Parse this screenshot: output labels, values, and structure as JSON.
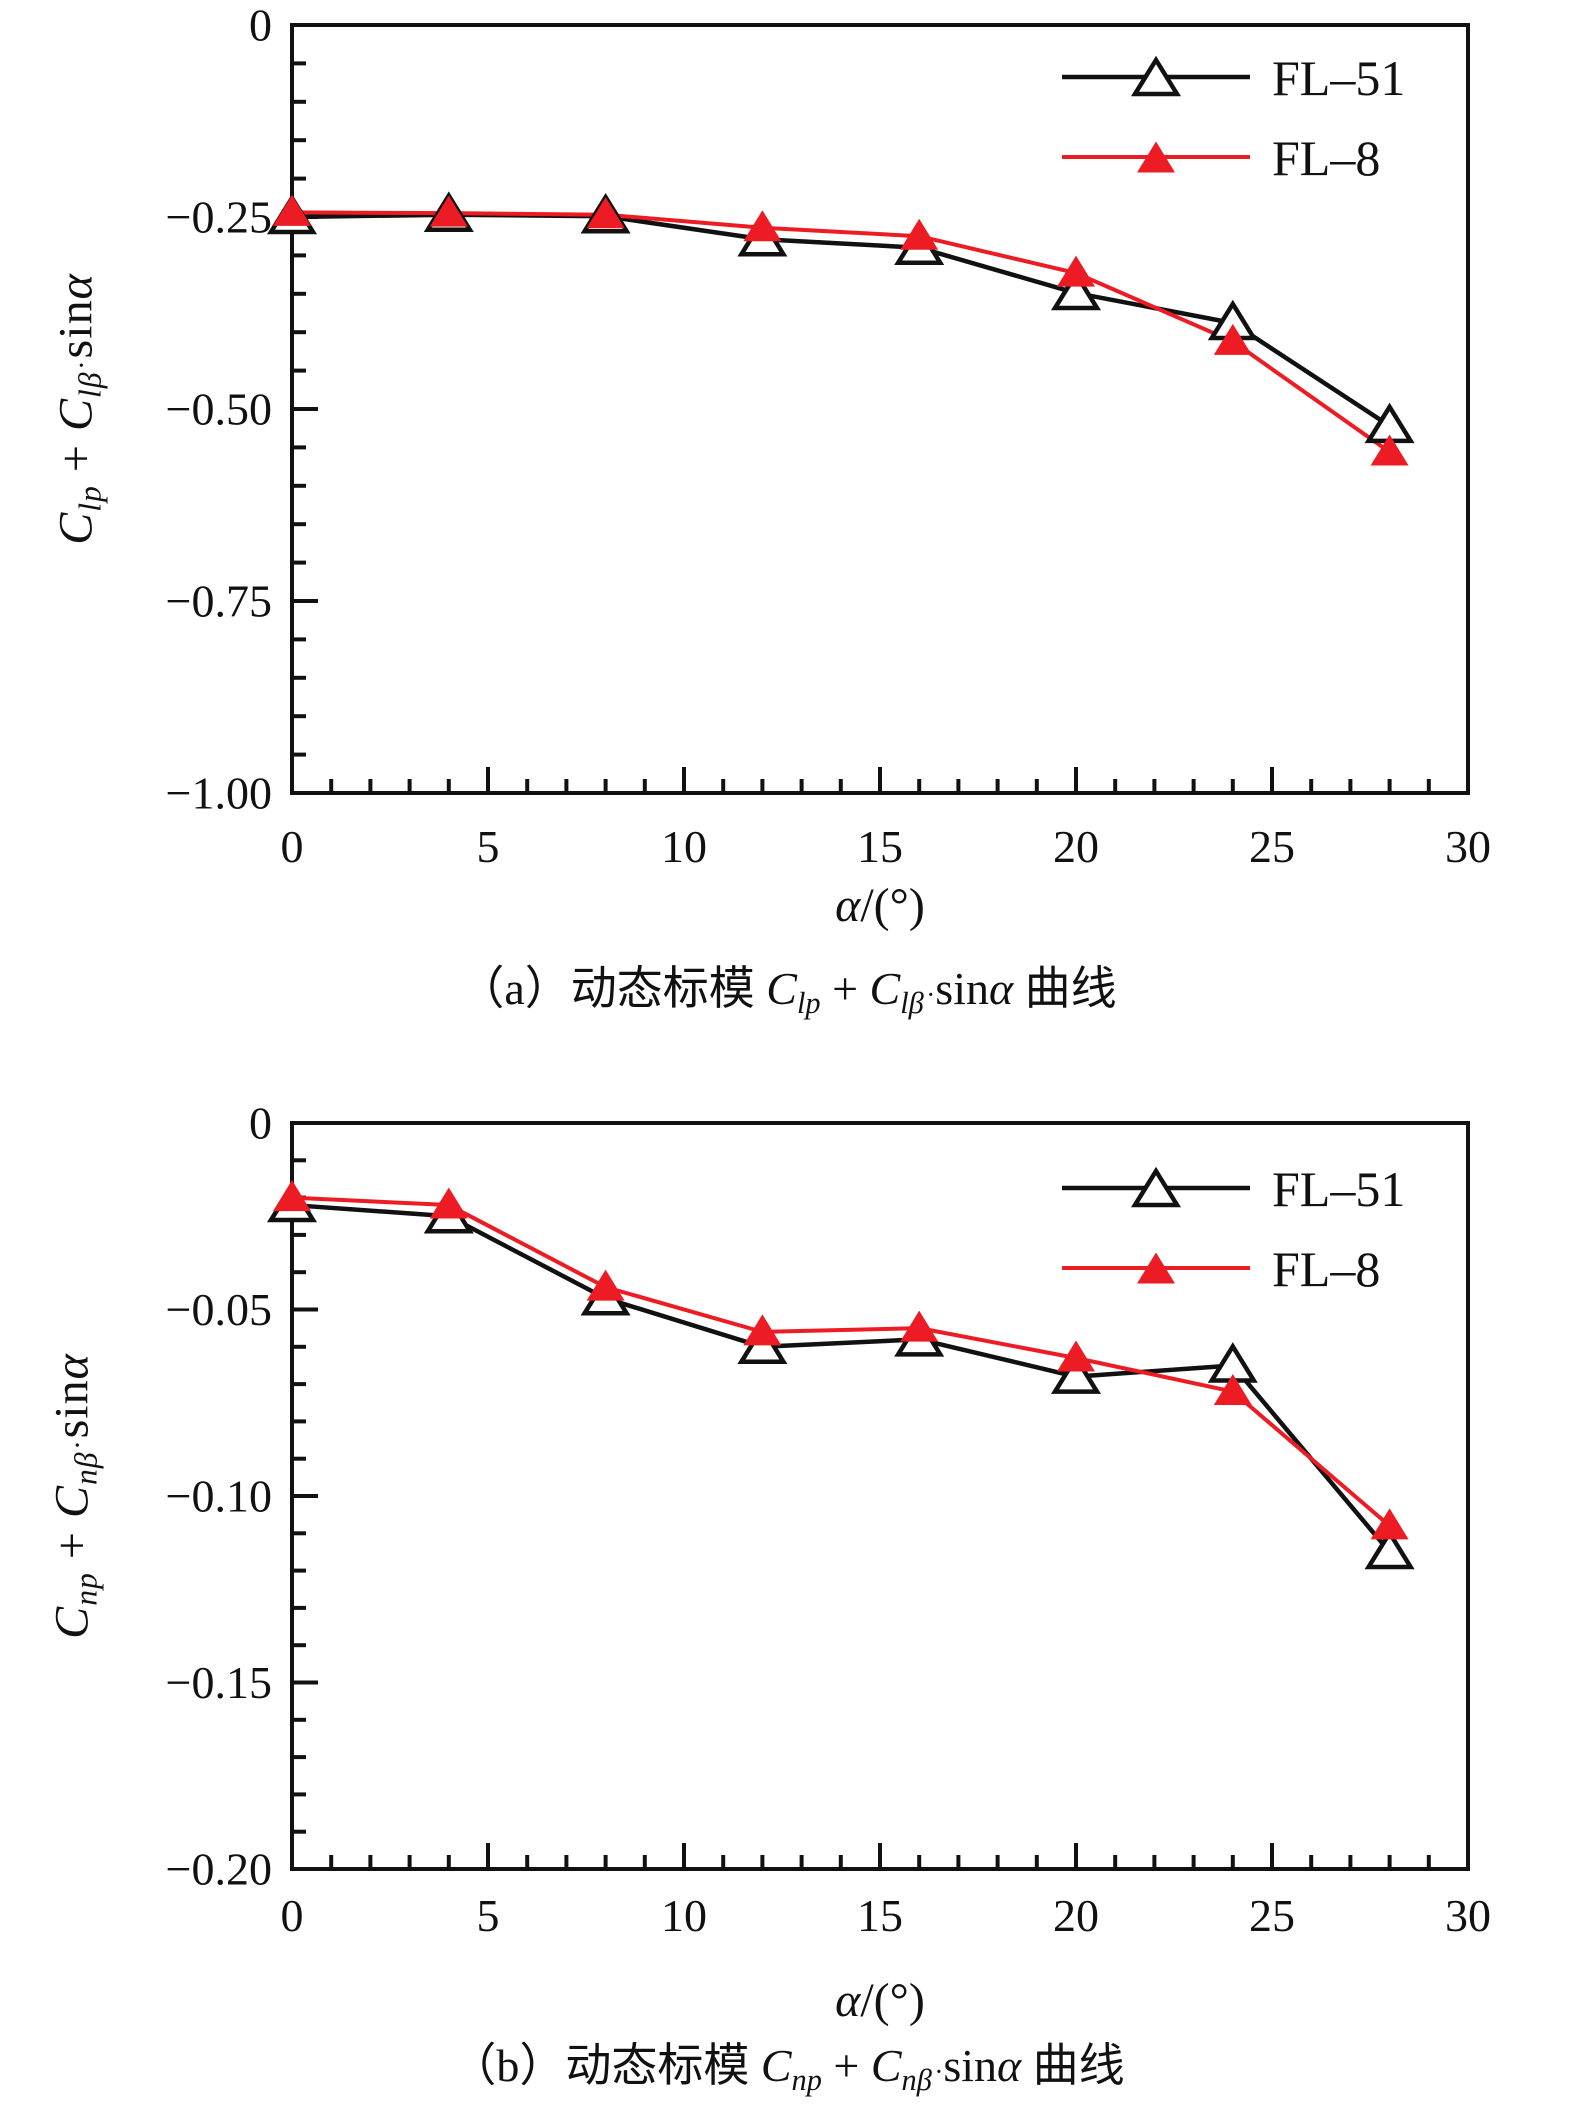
{
  "page": {
    "background": "#ffffff"
  },
  "colors": {
    "black": "#111111",
    "red": "#ed1c24",
    "marker_fill_open": "#ffffff"
  },
  "chart_data": [
    {
      "id": "a",
      "type": "line",
      "x": [
        0,
        4,
        8,
        12,
        16,
        20,
        24,
        28
      ],
      "series": [
        {
          "name": "FL–51",
          "color": "#111111",
          "marker": "open-triangle",
          "values": [
            -0.25,
            -0.247,
            -0.249,
            -0.279,
            -0.29,
            -0.349,
            -0.388,
            -0.522
          ]
        },
        {
          "name": "FL–8",
          "color": "#ed1c24",
          "marker": "filled-triangle",
          "values": [
            -0.244,
            -0.245,
            -0.247,
            -0.264,
            -0.275,
            -0.323,
            -0.412,
            -0.556
          ]
        }
      ],
      "xlim": [
        0,
        30
      ],
      "ylim": [
        -1.0,
        0
      ],
      "x_major_ticks": [
        0,
        5,
        10,
        15,
        20,
        25,
        30
      ],
      "x_tick_labels": [
        "0",
        "5",
        "10",
        "15",
        "20",
        "25",
        "30"
      ],
      "x_minor_step": 1,
      "y_major_ticks": [
        0,
        -0.25,
        -0.5,
        -0.75,
        -1.0
      ],
      "y_tick_labels": [
        "0",
        "−0.25",
        "−0.50",
        "−0.75",
        "−1.00"
      ],
      "y_minor_step": 0.05,
      "xlabel_rich": "*α*/(°)",
      "ylabel_rich": "*C*_{*lp*} + *C*_{*lβ̇*} sin*α*",
      "caption_rich": "（a）动态标模 *C*_{*lp*} + *C*_{*lβ̇*} sin*α* 曲线",
      "legend": {
        "entries": [
          "FL–51",
          "FL–8"
        ],
        "position": "top-right"
      },
      "grid": false
    },
    {
      "id": "b",
      "type": "line",
      "x": [
        0,
        4,
        8,
        12,
        16,
        20,
        24,
        28
      ],
      "series": [
        {
          "name": "FL–51",
          "color": "#111111",
          "marker": "open-triangle",
          "values": [
            -0.022,
            -0.025,
            -0.047,
            -0.06,
            -0.058,
            -0.068,
            -0.065,
            -0.115
          ]
        },
        {
          "name": "FL–8",
          "color": "#ed1c24",
          "marker": "filled-triangle",
          "values": [
            -0.02,
            -0.022,
            -0.044,
            -0.056,
            -0.055,
            -0.063,
            -0.072,
            -0.108
          ]
        }
      ],
      "xlim": [
        0,
        30
      ],
      "ylim": [
        -0.2,
        0
      ],
      "x_major_ticks": [
        0,
        5,
        10,
        15,
        20,
        25,
        30
      ],
      "x_tick_labels": [
        "0",
        "5",
        "10",
        "15",
        "20",
        "25",
        "30"
      ],
      "x_minor_step": 1,
      "y_major_ticks": [
        0,
        -0.05,
        -0.1,
        -0.15,
        -0.2
      ],
      "y_tick_labels": [
        "0",
        "−0.05",
        "−0.10",
        "−0.15",
        "−0.20"
      ],
      "y_minor_step": 0.01,
      "xlabel_rich": "*α*/(°)",
      "ylabel_rich": "*C*_{*np*} + *C*_{*nβ̇*} sin*α*",
      "caption_rich": "（b）动态标模 *C*_{*np*} + *C*_{*nβ̇*} sin*α* 曲线",
      "legend": {
        "entries": [
          "FL–51",
          "FL–8"
        ],
        "position": "top-right"
      },
      "grid": false
    }
  ]
}
